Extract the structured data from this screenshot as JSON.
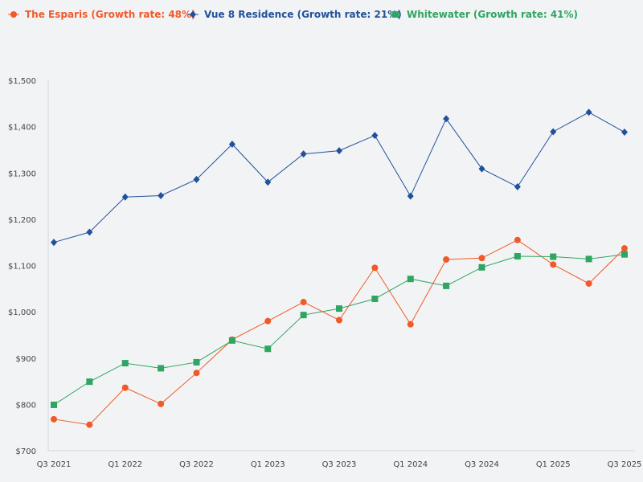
{
  "chart_data": {
    "type": "line",
    "title": "",
    "xlabel": "",
    "ylabel": "",
    "ylim": [
      700,
      1500
    ],
    "yticks": [
      700,
      800,
      900,
      1000,
      1100,
      1200,
      1300,
      1400,
      1500
    ],
    "ytick_labels": [
      "$700",
      "$800",
      "$900",
      "$1,000",
      "$1,100",
      "$1,200",
      "$1,300",
      "$1,400",
      "$1,500"
    ],
    "x_tick_labels": [
      "Q3 2021",
      "Q1 2022",
      "Q3 2022",
      "Q1 2023",
      "Q3 2023",
      "Q1 2024",
      "Q3 2024",
      "Q1 2025",
      "Q3 2025"
    ],
    "n_points": 17,
    "legend_position": "top-left",
    "grid": false,
    "series": [
      {
        "name": "The Esparis (Growth rate: 48%)",
        "color": "#f05a28",
        "marker": "circle",
        "values": [
          768,
          756,
          836,
          801,
          868,
          940,
          980,
          1021,
          982,
          1095,
          973,
          1113,
          1116,
          1155,
          1102,
          1061,
          1137
        ]
      },
      {
        "name": "Vue 8 Residence (Growth rate: 21%)",
        "color": "#22519b",
        "marker": "diamond",
        "values": [
          1150,
          1172,
          1248,
          1251,
          1286,
          1362,
          1280,
          1341,
          1348,
          1381,
          1250,
          1417,
          1309,
          1270,
          1389,
          1431,
          1388
        ]
      },
      {
        "name": "Whitewater (Growth rate: 41%)",
        "color": "#2ea661",
        "marker": "square",
        "values": [
          799,
          849,
          889,
          878,
          891,
          938,
          920,
          993,
          1007,
          1028,
          1071,
          1056,
          1096,
          1120,
          1119,
          1114,
          1124
        ]
      }
    ]
  }
}
